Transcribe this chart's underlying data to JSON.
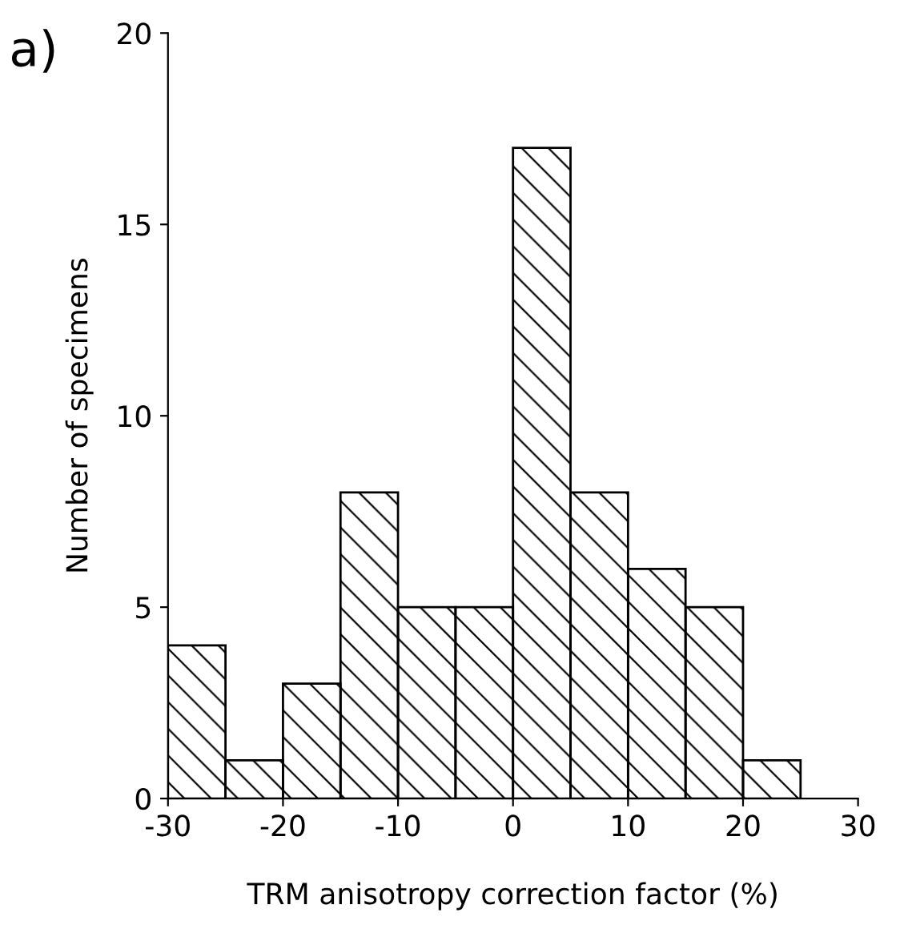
{
  "chart_data": {
    "type": "histogram",
    "xlabel": "TRM anisotropy correction factor (%)",
    "ylabel": "Number of specimens",
    "annotations": [
      "a)"
    ],
    "bins": [
      -30,
      -25,
      -20,
      -15,
      -10,
      -5,
      0,
      5,
      10,
      15,
      20,
      25
    ],
    "values": [
      4,
      1,
      3,
      8,
      5,
      5,
      17,
      8,
      6,
      5,
      1
    ],
    "color": "#000000",
    "xlim": [
      -30,
      30
    ],
    "xticks": [
      -30,
      -20,
      -10,
      0,
      10,
      20,
      30
    ],
    "ylim": [
      0,
      20
    ],
    "yticks": [
      0,
      5,
      10,
      15,
      20
    ],
    "grid": false,
    "legend": false
  }
}
